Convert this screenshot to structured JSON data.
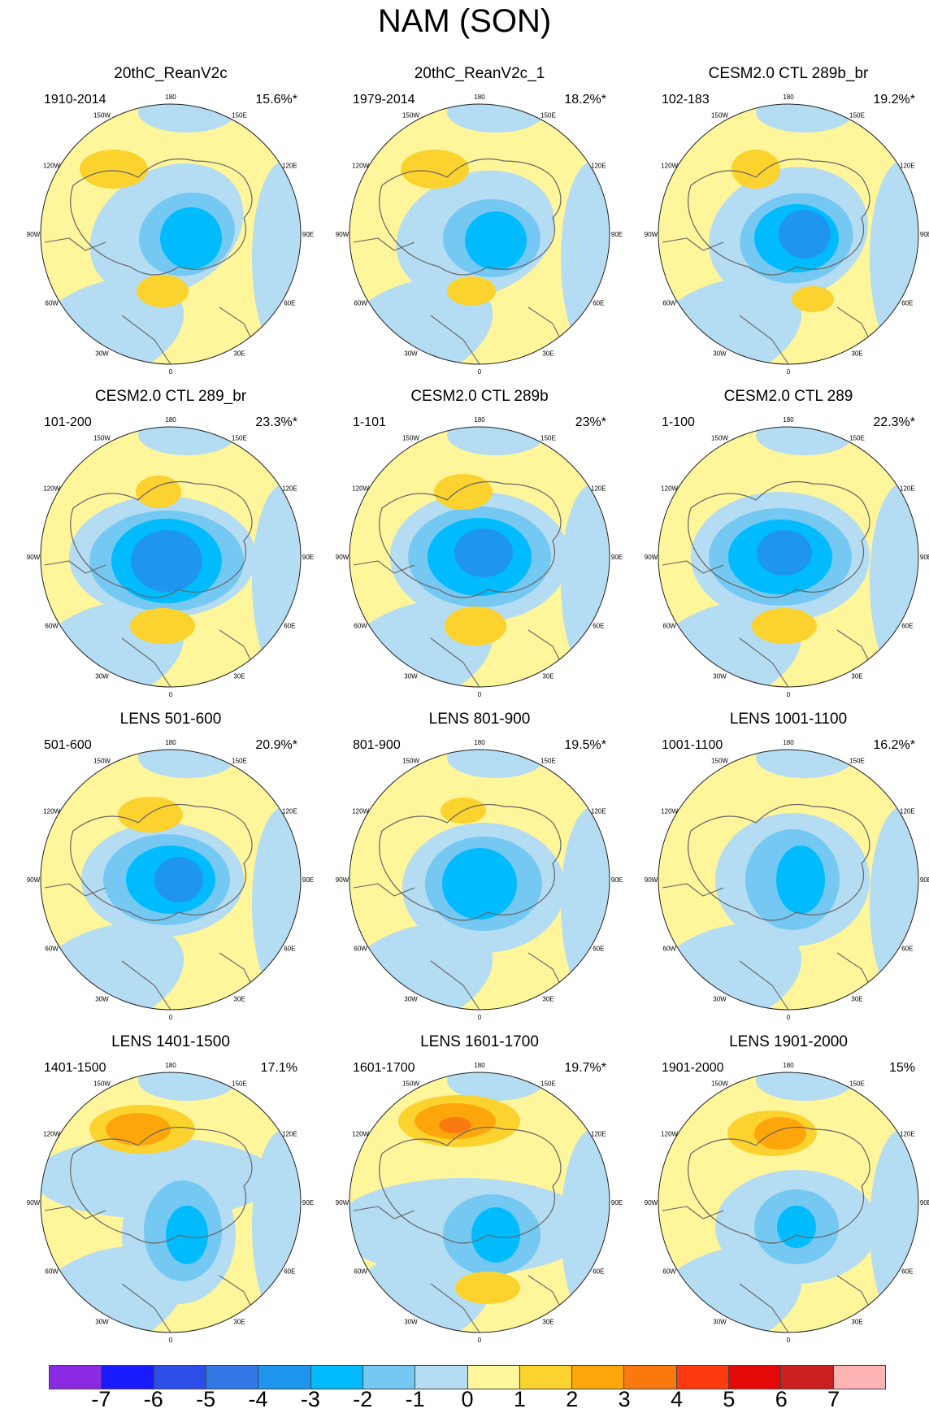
{
  "title": "NAM (SON)",
  "longitude_labels": [
    "180",
    "150E",
    "120E",
    "90E",
    "60E",
    "30E",
    "0",
    "30W",
    "60W",
    "90W",
    "120W",
    "150W"
  ],
  "panels": [
    {
      "title": "20thC_ReanV2c",
      "period": "1910-2014",
      "variance": "15.6%*"
    },
    {
      "title": "20thC_ReanV2c_1",
      "period": "1979-2014",
      "variance": "18.2%*"
    },
    {
      "title": "CESM2.0 CTL 289b_br",
      "period": "102-183",
      "variance": "19.2%*"
    },
    {
      "title": "CESM2.0 CTL 289_br",
      "period": "101-200",
      "variance": "23.3%*"
    },
    {
      "title": "CESM2.0 CTL 289b",
      "period": "1-101",
      "variance": "23%*"
    },
    {
      "title": "CESM2.0 CTL 289",
      "period": "1-100",
      "variance": "22.3%*"
    },
    {
      "title": "LENS 501-600",
      "period": "501-600",
      "variance": "20.9%*"
    },
    {
      "title": "LENS 801-900",
      "period": "801-900",
      "variance": "19.5%*"
    },
    {
      "title": "LENS 1001-1100",
      "period": "1001-1100",
      "variance": "16.2%*"
    },
    {
      "title": "LENS 1401-1500",
      "period": "1401-1500",
      "variance": "17.1%"
    },
    {
      "title": "LENS 1601-1700",
      "period": "1601-1700",
      "variance": "19.7%*"
    },
    {
      "title": "LENS 1901-2000",
      "period": "1901-2000",
      "variance": "15%"
    }
  ],
  "colorbar": {
    "labels": [
      "-7",
      "-6",
      "-5",
      "-4",
      "-3",
      "-2",
      "-1",
      "0",
      "1",
      "2",
      "3",
      "4",
      "5",
      "6",
      "7"
    ],
    "colors": [
      "#8a2be2",
      "#1a1aff",
      "#2b4ee8",
      "#3478e8",
      "#1e96f0",
      "#00bcff",
      "#74c8f2",
      "#b4dcf2",
      "#fff59b",
      "#fbd22e",
      "#fda60c",
      "#fb7a10",
      "#ff3a10",
      "#e40808",
      "#cc1f1f",
      "#ffb4b4"
    ]
  }
}
